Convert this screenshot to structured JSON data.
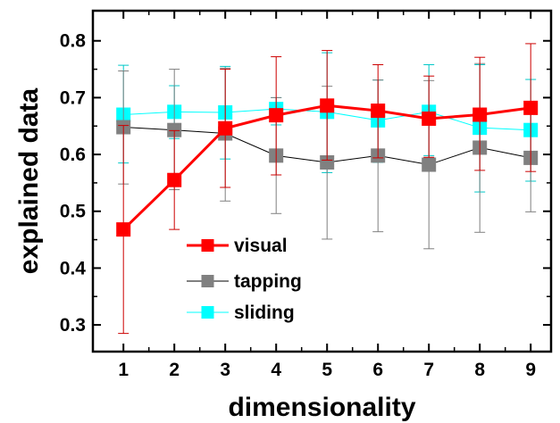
{
  "chart_data": {
    "type": "line",
    "xlabel": "dimensionality",
    "ylabel": "explained data",
    "xlim": [
      0.4,
      9.4
    ],
    "ylim": [
      0.253,
      0.853
    ],
    "x": [
      1,
      2,
      3,
      4,
      5,
      6,
      7,
      8,
      9
    ],
    "xticks": [
      "1",
      "2",
      "3",
      "4",
      "5",
      "6",
      "7",
      "8",
      "9"
    ],
    "yticks": [
      "0.3",
      "0.4",
      "0.5",
      "0.6",
      "0.7",
      "0.8"
    ],
    "grid": false,
    "legend_position": "bottom-left",
    "series": [
      {
        "name": "sliding",
        "color": "#00FFFF",
        "line_width": 1,
        "values": [
          0.67,
          0.675,
          0.674,
          0.68,
          0.675,
          0.66,
          0.675,
          0.647,
          0.643
        ],
        "err_low": [
          0.585,
          0.628,
          0.592,
          0.652,
          0.568,
          0.586,
          0.598,
          0.534,
          0.553
        ],
        "err_high": [
          0.757,
          0.721,
          0.755,
          0.7,
          0.779,
          0.731,
          0.758,
          0.758,
          0.732
        ]
      },
      {
        "name": "tapping",
        "color": "#808080",
        "line_width": 1,
        "values": [
          0.648,
          0.643,
          0.637,
          0.598,
          0.586,
          0.598,
          0.582,
          0.612,
          0.594
        ],
        "err_low": [
          0.548,
          0.538,
          0.518,
          0.496,
          0.451,
          0.464,
          0.434,
          0.463,
          0.499
        ],
        "err_high": [
          0.747,
          0.75,
          0.752,
          0.7,
          0.72,
          0.731,
          0.73,
          0.76,
          0.691
        ]
      },
      {
        "name": "visual",
        "color": "#FF0000",
        "line_width": 3,
        "values": [
          0.468,
          0.555,
          0.646,
          0.669,
          0.686,
          0.677,
          0.663,
          0.67,
          0.682
        ],
        "err_low": [
          0.285,
          0.468,
          0.542,
          0.564,
          0.59,
          0.594,
          0.595,
          0.572,
          0.57
        ],
        "err_high": [
          0.651,
          0.642,
          0.75,
          0.772,
          0.783,
          0.758,
          0.738,
          0.771,
          0.795
        ]
      }
    ],
    "legend_order": [
      "visual",
      "tapping",
      "sliding"
    ]
  }
}
